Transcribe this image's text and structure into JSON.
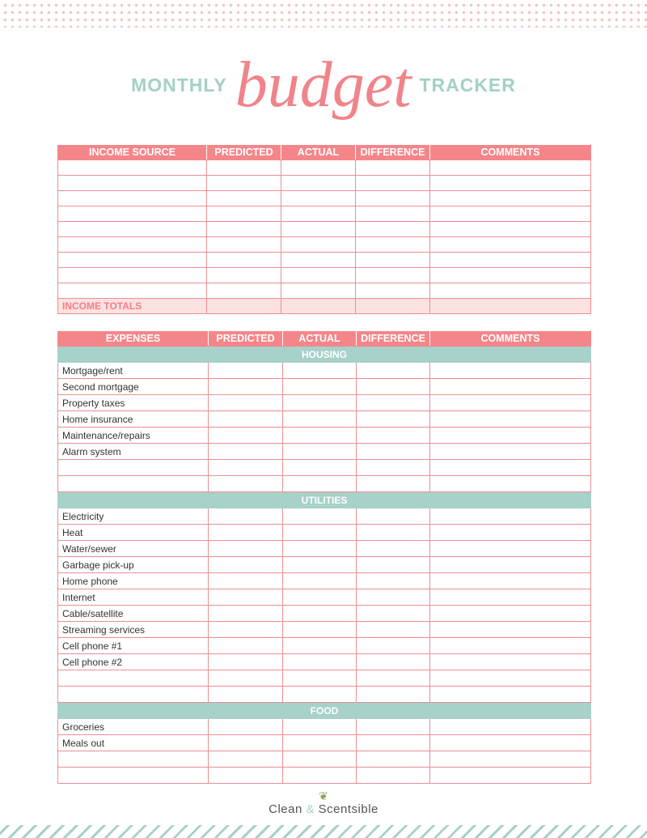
{
  "title": {
    "left": "MONTHLY",
    "script": "budget",
    "right": "TRACKER"
  },
  "income": {
    "headers": [
      "INCOME SOURCE",
      "PREDICTED",
      "ACTUAL",
      "DIFFERENCE",
      "COMMENTS"
    ],
    "blank_rows": 9,
    "totals_label": "INCOME TOTALS"
  },
  "expenses": {
    "headers": [
      "EXPENSES",
      "PREDICTED",
      "ACTUAL",
      "DIFFERENCE",
      "COMMENTS"
    ],
    "categories": [
      {
        "name": "HOUSING",
        "items": [
          "Mortgage/rent",
          "Second mortgage",
          "Property taxes",
          "Home insurance",
          "Maintenance/repairs",
          "Alarm system",
          "",
          ""
        ]
      },
      {
        "name": "UTILITIES",
        "items": [
          "Electricity",
          "Heat",
          "Water/sewer",
          "Garbage pick-up",
          "Home phone",
          "Internet",
          "Cable/satellite",
          "Streaming services",
          "Cell phone #1",
          "Cell phone #2",
          "",
          ""
        ]
      },
      {
        "name": "FOOD",
        "items": [
          "Groceries",
          "Meals out",
          "",
          ""
        ]
      }
    ]
  },
  "footer": {
    "brand_a": "Clean",
    "amp": "&",
    "brand_b": "Scentsible"
  },
  "colors": {
    "pink": "#f4868a",
    "teal": "#a7d1c9",
    "totals_bg": "#fde2e2"
  }
}
